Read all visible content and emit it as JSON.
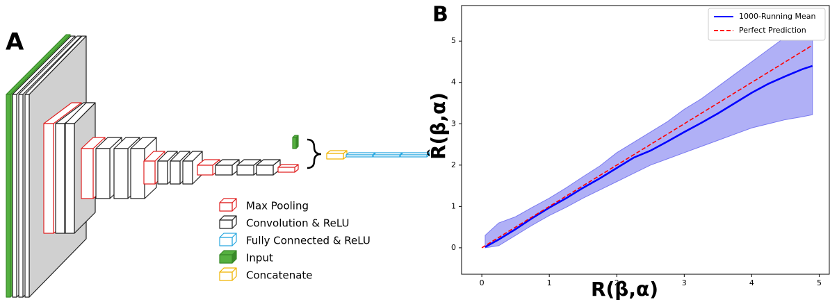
{
  "panel_a": {
    "label": "A",
    "legend": [
      "Max Pooling",
      "Convolution & ReLU",
      "Fully Connected & ReLU",
      "Input",
      "Concatenate"
    ]
  },
  "chart_data": {
    "type": "line",
    "label": "B",
    "xlabel": "R(β,α)",
    "ylabel": "R̂(β,α)",
    "x": [
      0.05,
      0.25,
      0.5,
      0.75,
      1,
      1.25,
      1.5,
      1.75,
      2,
      2.25,
      2.5,
      2.75,
      3,
      3.25,
      3.5,
      3.75,
      4,
      4.25,
      4.5,
      4.75,
      4.9
    ],
    "series": [
      {
        "name": "1000-Running Mean",
        "color": "#0000ff",
        "values": [
          0.02,
          0.2,
          0.45,
          0.72,
          0.97,
          1.2,
          1.45,
          1.68,
          1.93,
          2.18,
          2.35,
          2.57,
          2.8,
          3.02,
          3.25,
          3.5,
          3.75,
          3.97,
          4.15,
          4.32,
          4.4
        ]
      },
      {
        "name": "Perfect Prediction",
        "color": "#ff0000",
        "dashed": true,
        "x": [
          0,
          4.9
        ],
        "values": [
          0,
          4.9
        ]
      }
    ],
    "band": {
      "color": "#7b7bf0",
      "lower": [
        0,
        0.05,
        0.3,
        0.55,
        0.78,
        0.98,
        1.2,
        1.4,
        1.6,
        1.8,
        2.0,
        2.15,
        2.3,
        2.45,
        2.6,
        2.75,
        2.9,
        3.0,
        3.1,
        3.17,
        3.22
      ],
      "upper": [
        0.3,
        0.6,
        0.75,
        0.98,
        1.2,
        1.45,
        1.72,
        1.98,
        2.3,
        2.55,
        2.8,
        3.05,
        3.35,
        3.6,
        3.9,
        4.2,
        4.5,
        4.8,
        5.1,
        5.35,
        5.5
      ]
    },
    "xlim": [
      -0.3,
      5.15
    ],
    "ylim": [
      -0.64,
      5.86
    ],
    "xticks": [
      0,
      1,
      2,
      3,
      4,
      5
    ],
    "yticks": [
      0,
      1,
      2,
      3,
      4,
      5
    ],
    "legend": "upper right"
  }
}
